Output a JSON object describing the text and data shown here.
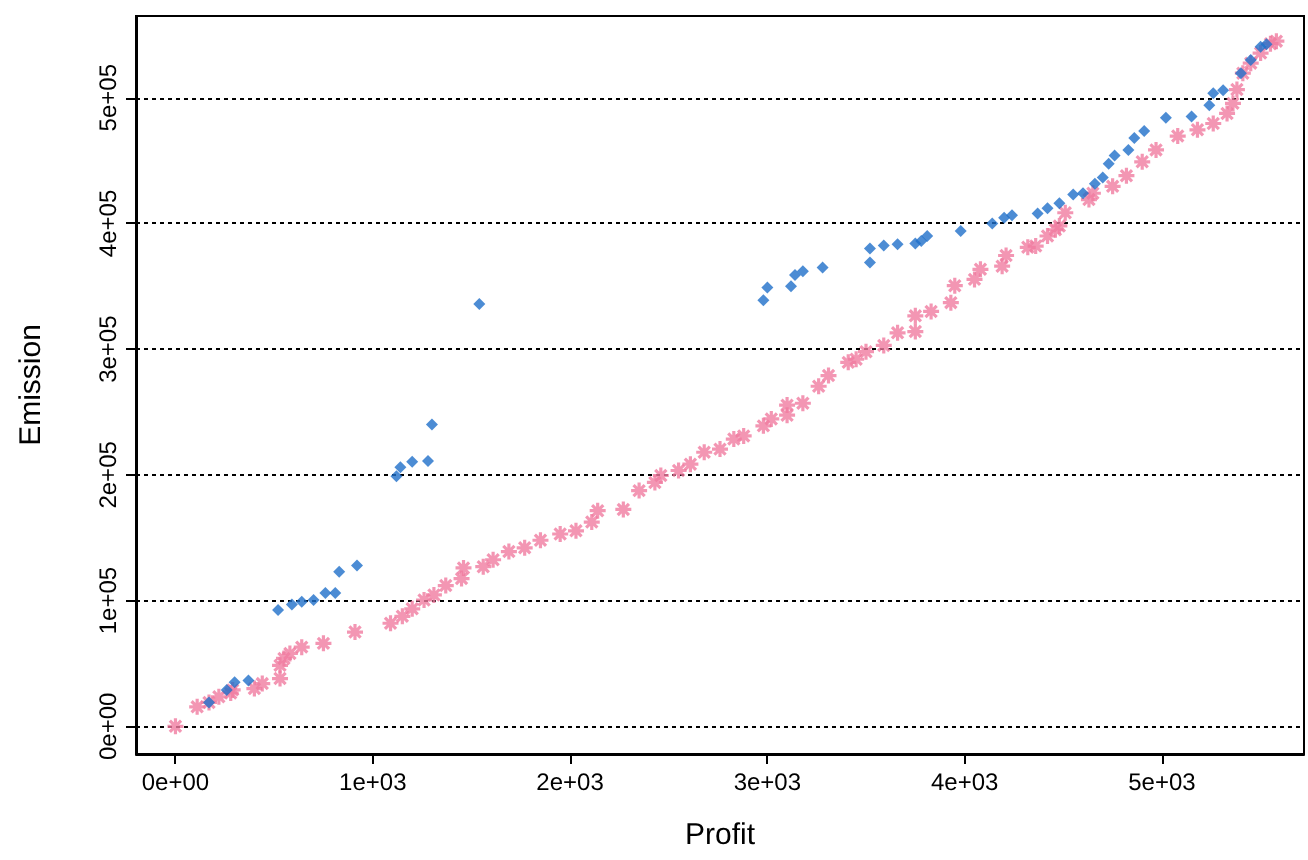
{
  "chart_data": {
    "type": "scatter",
    "xlabel": "Profit",
    "ylabel": "Emission",
    "xlim": [
      -200,
      5720
    ],
    "ylim": [
      -22000,
      565000
    ],
    "xticks": [
      {
        "value": 0,
        "label": "0e+00"
      },
      {
        "value": 1000,
        "label": "1e+03"
      },
      {
        "value": 2000,
        "label": "2e+03"
      },
      {
        "value": 3000,
        "label": "3e+03"
      },
      {
        "value": 4000,
        "label": "4e+03"
      },
      {
        "value": 5000,
        "label": "5e+03"
      }
    ],
    "yticks": [
      {
        "value": 0,
        "label": "0e+00"
      },
      {
        "value": 100000,
        "label": "1e+05"
      },
      {
        "value": 200000,
        "label": "2e+05"
      },
      {
        "value": 300000,
        "label": "3e+05"
      },
      {
        "value": 400000,
        "label": "4e+05"
      },
      {
        "value": 500000,
        "label": "5e+05"
      }
    ],
    "grid": "y",
    "series": [
      {
        "color": "#1f6fc9",
        "marker": "diamond",
        "x": [
          170,
          260,
          300,
          370,
          520,
          590,
          640,
          700,
          760,
          810,
          830,
          920,
          1120,
          1140,
          1200,
          1280,
          1300,
          1540,
          2980,
          3000,
          3120,
          3140,
          3180,
          3280,
          3520,
          3520,
          3590,
          3660,
          3750,
          3780,
          3810,
          3980,
          4140,
          4200,
          4240,
          4370,
          4420,
          4480,
          4550,
          4600,
          4660,
          4700,
          4730,
          4760,
          4830,
          4860,
          4910,
          5020,
          5150,
          5240,
          5260,
          5310,
          5400,
          5450,
          5500,
          5530
        ],
        "values": [
          19000,
          29000,
          35000,
          36500,
          92500,
          97000,
          99000,
          100500,
          106000,
          106000,
          123000,
          128000,
          199000,
          206000,
          210500,
          211000,
          240000,
          336000,
          339000,
          349000,
          350000,
          359000,
          362000,
          365000,
          369000,
          380000,
          382500,
          383500,
          384000,
          386000,
          390000,
          394000,
          400000,
          404500,
          406500,
          408000,
          412000,
          416000,
          423000,
          424000,
          431500,
          436500,
          447500,
          454000,
          458500,
          468000,
          473500,
          484000,
          485000,
          494000,
          503500,
          506000,
          519500,
          530000,
          540500,
          542500
        ]
      },
      {
        "color": "#f07ca0",
        "marker": "star",
        "x": [
          0,
          110,
          170,
          220,
          280,
          290,
          400,
          440,
          530,
          530,
          550,
          580,
          640,
          750,
          910,
          1090,
          1150,
          1200,
          1260,
          1310,
          1370,
          1450,
          1460,
          1560,
          1610,
          1690,
          1770,
          1850,
          1950,
          2030,
          2110,
          2140,
          2270,
          2350,
          2430,
          2460,
          2550,
          2610,
          2680,
          2760,
          2830,
          2880,
          2980,
          3020,
          3100,
          3100,
          3180,
          3260,
          3310,
          3410,
          3450,
          3500,
          3590,
          3660,
          3750,
          3750,
          3830,
          3930,
          3950,
          4050,
          4080,
          4190,
          4210,
          4320,
          4360,
          4420,
          4460,
          4480,
          4510,
          4630,
          4650,
          4750,
          4820,
          4900,
          4970,
          5080,
          5180,
          5260,
          5330,
          5360,
          5380,
          5410,
          5450,
          5500,
          5550,
          5580
        ],
        "values": [
          0,
          15500,
          19000,
          23500,
          26500,
          29000,
          30000,
          34000,
          38000,
          48500,
          54000,
          58000,
          63000,
          66000,
          75000,
          82000,
          87500,
          93500,
          100500,
          104500,
          112000,
          117500,
          126000,
          127000,
          132500,
          139000,
          142000,
          148000,
          153000,
          155500,
          162500,
          171500,
          172500,
          187500,
          194000,
          199500,
          203500,
          208500,
          218000,
          220500,
          228500,
          231000,
          239000,
          244500,
          247500,
          255500,
          257000,
          270500,
          279000,
          289500,
          292000,
          298000,
          303000,
          313000,
          314000,
          326500,
          330000,
          337000,
          350500,
          355500,
          363500,
          366000,
          374500,
          381000,
          382000,
          390000,
          395000,
          398000,
          408500,
          419000,
          424000,
          429500,
          438000,
          449000,
          458500,
          469500,
          474500,
          479500,
          487500,
          495500,
          506500,
          519500,
          527500,
          535500,
          543000,
          545000
        ]
      }
    ]
  }
}
